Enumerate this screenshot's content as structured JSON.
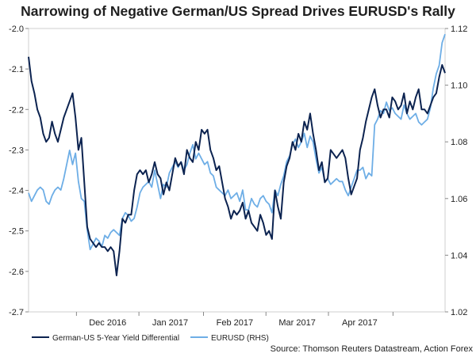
{
  "chart_data": {
    "type": "line",
    "title": "Narrowing of Negative German/US Spread Drives EURUSD's Rally",
    "source": "Source: Thomson Reuters Datastream, Action Forex",
    "x_ticks": [
      "Dec 2016",
      "Jan 2017",
      "Feb 2017",
      "Mar 2017",
      "Apr 2017"
    ],
    "y_left": {
      "min": -2.7,
      "max": -2.0,
      "ticks": [
        "-2.0",
        "-2.1",
        "-2.2",
        "-2.3",
        "-2.4",
        "-2.5",
        "-2.6",
        "-2.7"
      ]
    },
    "y_right": {
      "min": 1.02,
      "max": 1.12,
      "ticks": [
        "1.12",
        "1.10",
        "1.08",
        "1.06",
        "1.04",
        "1.02"
      ]
    },
    "legend": [
      {
        "label": "German-US 5-Year Yield Differential",
        "color": "#0c2350"
      },
      {
        "label": "EURUSD (RHS)",
        "color": "#6eaee6"
      }
    ],
    "series": [
      {
        "name": "German-US 5-Year Yield Differential",
        "axis": "left",
        "color": "#0c2350",
        "values": [
          -2.07,
          -2.13,
          -2.16,
          -2.2,
          -2.22,
          -2.26,
          -2.28,
          -2.27,
          -2.23,
          -2.26,
          -2.28,
          -2.25,
          -2.22,
          -2.2,
          -2.18,
          -2.16,
          -2.22,
          -2.3,
          -2.27,
          -2.38,
          -2.49,
          -2.52,
          -2.53,
          -2.54,
          -2.53,
          -2.54,
          -2.54,
          -2.55,
          -2.54,
          -2.55,
          -2.61,
          -2.55,
          -2.47,
          -2.48,
          -2.46,
          -2.46,
          -2.4,
          -2.36,
          -2.35,
          -2.36,
          -2.35,
          -2.38,
          -2.36,
          -2.33,
          -2.36,
          -2.37,
          -2.41,
          -2.38,
          -2.4,
          -2.36,
          -2.32,
          -2.34,
          -2.33,
          -2.36,
          -2.3,
          -2.32,
          -2.33,
          -2.28,
          -2.3,
          -2.25,
          -2.26,
          -2.25,
          -2.3,
          -2.32,
          -2.35,
          -2.34,
          -2.38,
          -2.42,
          -2.44,
          -2.47,
          -2.45,
          -2.46,
          -2.45,
          -2.43,
          -2.47,
          -2.45,
          -2.48,
          -2.49,
          -2.5,
          -2.46,
          -2.48,
          -2.51,
          -2.5,
          -2.52,
          -2.4,
          -2.44,
          -2.47,
          -2.38,
          -2.34,
          -2.32,
          -2.28,
          -2.3,
          -2.26,
          -2.28,
          -2.23,
          -2.25,
          -2.21,
          -2.26,
          -2.3,
          -2.35,
          -2.33,
          -2.38,
          -2.37,
          -2.3,
          -2.31,
          -2.32,
          -2.31,
          -2.3,
          -2.32,
          -2.37,
          -2.41,
          -2.39,
          -2.37,
          -2.3,
          -2.27,
          -2.23,
          -2.2,
          -2.17,
          -2.15,
          -2.19,
          -2.22,
          -2.2,
          -2.2,
          -2.22,
          -2.17,
          -2.18,
          -2.2,
          -2.19,
          -2.16,
          -2.21,
          -2.18,
          -2.2,
          -2.17,
          -2.15,
          -2.2,
          -2.2,
          -2.21,
          -2.19,
          -2.17,
          -2.16,
          -2.12,
          -2.09,
          -2.11
        ]
      },
      {
        "name": "EURUSD (RHS)",
        "axis": "right",
        "color": "#6eaee6",
        "values": [
          1.062,
          1.059,
          1.061,
          1.063,
          1.064,
          1.063,
          1.059,
          1.058,
          1.061,
          1.063,
          1.064,
          1.063,
          1.067,
          1.072,
          1.077,
          1.072,
          1.076,
          1.066,
          1.06,
          1.059,
          1.049,
          1.042,
          1.044,
          1.046,
          1.045,
          1.043,
          1.047,
          1.046,
          1.048,
          1.049,
          1.048,
          1.047,
          1.053,
          1.055,
          1.054,
          1.052,
          1.053,
          1.057,
          1.062,
          1.064,
          1.065,
          1.066,
          1.064,
          1.07,
          1.065,
          1.06,
          1.065,
          1.064,
          1.069,
          1.071,
          1.073,
          1.071,
          1.073,
          1.07,
          1.072,
          1.076,
          1.079,
          1.074,
          1.076,
          1.074,
          1.072,
          1.073,
          1.069,
          1.068,
          1.064,
          1.063,
          1.062,
          1.061,
          1.063,
          1.06,
          1.061,
          1.062,
          1.059,
          1.063,
          1.056,
          1.056,
          1.06,
          1.058,
          1.057,
          1.06,
          1.061,
          1.059,
          1.058,
          1.055,
          1.063,
          1.061,
          1.065,
          1.068,
          1.073,
          1.075,
          1.079,
          1.081,
          1.078,
          1.08,
          1.083,
          1.078,
          1.082,
          1.08,
          1.074,
          1.069,
          1.071,
          1.066,
          1.067,
          1.065,
          1.066,
          1.067,
          1.066,
          1.066,
          1.063,
          1.061,
          1.064,
          1.067,
          1.07,
          1.07,
          1.071,
          1.067,
          1.069,
          1.068,
          1.086,
          1.088,
          1.091,
          1.09,
          1.094,
          1.091,
          1.092,
          1.09,
          1.089,
          1.088,
          1.093,
          1.09,
          1.088,
          1.089,
          1.09,
          1.087,
          1.086,
          1.087,
          1.088,
          1.092,
          1.099,
          1.104,
          1.107,
          1.115,
          1.118
        ]
      }
    ]
  }
}
